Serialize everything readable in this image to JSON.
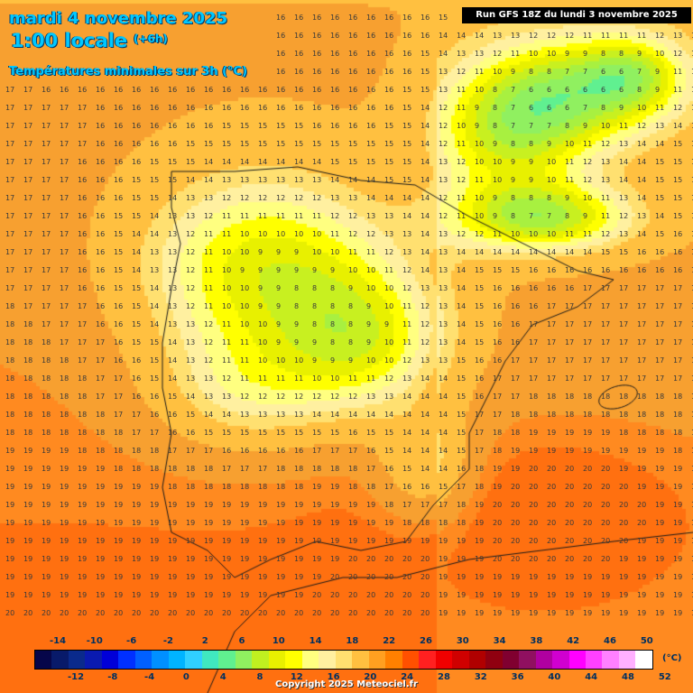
{
  "header": {
    "date": "mardi 4 novembre 2025",
    "time": "1:00 locale",
    "offset": "(+6h)",
    "field": "Températures minimales sur 3h (°C)"
  },
  "run_info": "Run GFS 18Z du lundi 3 novembre 2025",
  "copyright": "Copyright 2025 Meteociel.fr",
  "legend": {
    "unit": "(°C)",
    "labels_top": [
      "-14",
      "-10",
      "-6",
      "-2",
      "2",
      "6",
      "10",
      "14",
      "18",
      "22",
      "26",
      "30",
      "34",
      "38",
      "42",
      "46",
      "50"
    ],
    "labels_bottom": [
      "-12",
      "-8",
      "-4",
      "0",
      "4",
      "8",
      "12",
      "16",
      "20",
      "24",
      "28",
      "32",
      "36",
      "40",
      "44",
      "48",
      "52"
    ],
    "colors": [
      "#06064a",
      "#081a6a",
      "#0a2a8c",
      "#0a1ab0",
      "#0000d8",
      "#0030ff",
      "#0060ff",
      "#0090ff",
      "#00b4ff",
      "#30d0ff",
      "#40e8c0",
      "#60f090",
      "#90f060",
      "#c0f020",
      "#e8f000",
      "#ffff00",
      "#ffff80",
      "#fff0a0",
      "#ffe070",
      "#ffc040",
      "#ffa020",
      "#ff8000",
      "#ff5000",
      "#ff2020",
      "#f00000",
      "#d00000",
      "#b00000",
      "#900010",
      "#800030",
      "#901060",
      "#b000a0",
      "#d000d0",
      "#ff00ff",
      "#ff40ff",
      "#ff80ff",
      "#ffb0ff",
      "#ffffff"
    ]
  },
  "colors": {
    "title": "#00c8ff",
    "badge_bg": "#000000",
    "sea_warm": "#f4a030",
    "land_cool": "#90e040"
  }
}
